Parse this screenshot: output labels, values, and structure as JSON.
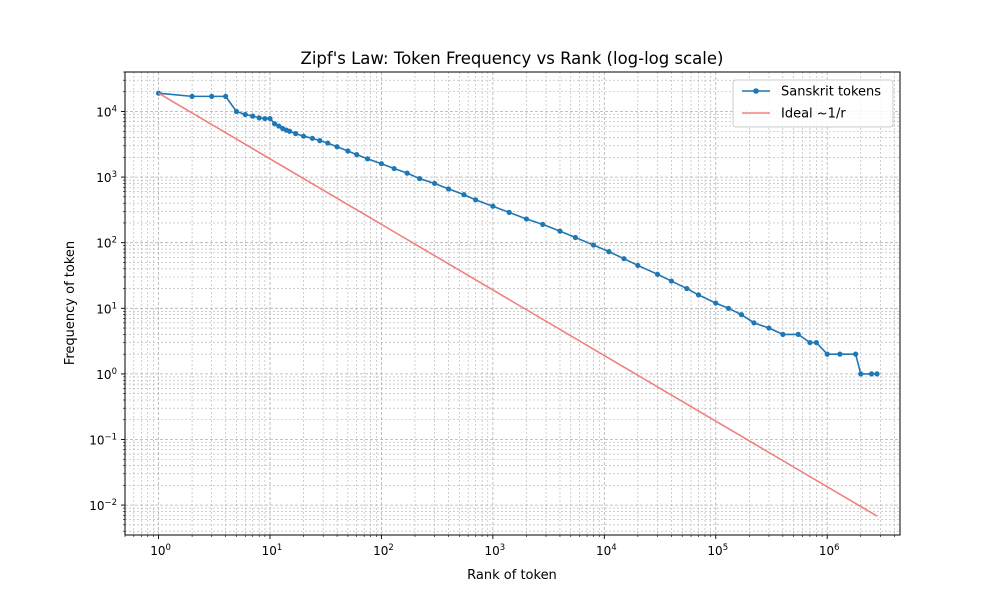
{
  "chart_data": {
    "type": "line",
    "title": "Zipf's Law: Token Frequency vs Rank (log-log scale)",
    "xlabel": "Rank of token",
    "ylabel": "Frequency of token",
    "x_scale": "log",
    "y_scale": "log",
    "xlim": [
      0.5,
      4500000
    ],
    "ylim": [
      0.0035,
      40000
    ],
    "x_ticks": [
      {
        "value": 1,
        "base": "10",
        "exp": "0"
      },
      {
        "value": 10,
        "base": "10",
        "exp": "1"
      },
      {
        "value": 100,
        "base": "10",
        "exp": "2"
      },
      {
        "value": 1000,
        "base": "10",
        "exp": "3"
      },
      {
        "value": 10000,
        "base": "10",
        "exp": "4"
      },
      {
        "value": 100000,
        "base": "10",
        "exp": "5"
      },
      {
        "value": 1000000,
        "base": "10",
        "exp": "6"
      }
    ],
    "y_ticks": [
      {
        "value": 0.01,
        "base": "10",
        "exp": "−2"
      },
      {
        "value": 0.1,
        "base": "10",
        "exp": "−1"
      },
      {
        "value": 1,
        "base": "10",
        "exp": "0"
      },
      {
        "value": 10,
        "base": "10",
        "exp": "1"
      },
      {
        "value": 100,
        "base": "10",
        "exp": "2"
      },
      {
        "value": 1000,
        "base": "10",
        "exp": "3"
      },
      {
        "value": 10000,
        "base": "10",
        "exp": "4"
      }
    ],
    "grid": "both-major-minor",
    "legend_position": "top-right",
    "series": [
      {
        "name": "Sanskrit tokens",
        "color": "#1f77b4",
        "style": "line-with-dots",
        "x": [
          1,
          2,
          3,
          4,
          5,
          6,
          7,
          8,
          9,
          10,
          11,
          12,
          13,
          14,
          15,
          17,
          20,
          24,
          28,
          33,
          40,
          50,
          60,
          75,
          100,
          130,
          170,
          220,
          300,
          400,
          550,
          700,
          1000,
          1400,
          2000,
          2800,
          4000,
          5500,
          8000,
          11000,
          15000,
          20000,
          30000,
          40000,
          55000,
          70000,
          100000,
          130000,
          170000,
          220000,
          300000,
          400000,
          550000,
          700000,
          800000,
          1000000,
          1300000,
          1800000,
          2000000,
          2500000,
          2800000
        ],
        "y": [
          19000,
          17000,
          17000,
          17000,
          10000,
          9000,
          8500,
          8000,
          7800,
          7800,
          6500,
          6000,
          5500,
          5200,
          5000,
          4600,
          4200,
          3900,
          3600,
          3300,
          2900,
          2500,
          2200,
          1900,
          1600,
          1350,
          1150,
          950,
          800,
          660,
          540,
          450,
          360,
          290,
          230,
          190,
          150,
          120,
          92,
          73,
          57,
          45,
          33,
          26,
          20,
          16,
          12,
          10,
          8,
          6,
          5,
          4,
          4,
          3,
          3,
          2,
          2,
          2,
          1,
          1,
          1
        ]
      },
      {
        "name": "Ideal ~1/r",
        "color": "#f08080",
        "style": "line",
        "x": [
          1,
          2800000
        ],
        "y": [
          19000,
          0.0068
        ]
      }
    ]
  }
}
